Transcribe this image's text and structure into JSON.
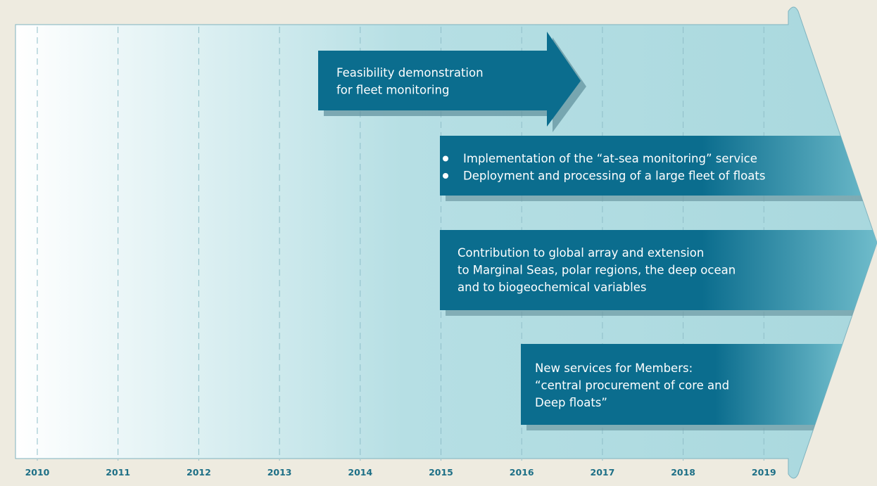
{
  "timeline": {
    "years": [
      "2010",
      "2011",
      "2012",
      "2013",
      "2014",
      "2015",
      "2016",
      "2017",
      "2018",
      "2019"
    ],
    "boxes": [
      {
        "lines": [
          "Feasibility demonstration",
          "for fleet monitoring"
        ]
      },
      {
        "items": [
          "Implementation of the “at-sea monitoring” service",
          "Deployment and processing of a large fleet of floats"
        ]
      },
      {
        "lines": [
          "Contribution to global array and extension",
          "to Marginal Seas, polar regions, the deep ocean",
          "and to biogeochemical variables"
        ]
      },
      {
        "lines": [
          "New services for Members:",
          "“central procurement of core and",
          "Deep floats”"
        ]
      }
    ]
  }
}
